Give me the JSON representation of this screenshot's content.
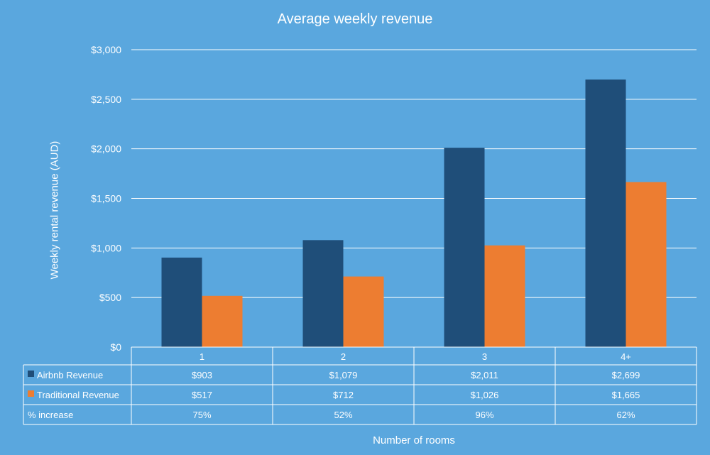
{
  "chart_data": {
    "type": "bar",
    "title": "Average weekly revenue",
    "xlabel": "Number of rooms",
    "ylabel": "Weekly rental revenue (AUD)",
    "categories": [
      "1",
      "2",
      "3",
      "4+"
    ],
    "series": [
      {
        "name": "Airbnb Revenue",
        "color": "#1f4e79",
        "values": [
          903,
          1079,
          2011,
          2699
        ],
        "table_labels": [
          "$903",
          "$1,079",
          "$2,011",
          "$2,699"
        ]
      },
      {
        "name": "Traditional Revenue",
        "color": "#ed7d31",
        "values": [
          517,
          712,
          1026,
          1665
        ],
        "table_labels": [
          "$517",
          "$712",
          "$1,026",
          "$1,665"
        ]
      }
    ],
    "extra_rows": [
      {
        "name": "% increase",
        "values": [
          "75%",
          "52%",
          "96%",
          "62%"
        ]
      }
    ],
    "ylim": [
      0,
      3000
    ],
    "yticks": [
      0,
      500,
      1000,
      1500,
      2000,
      2500,
      3000
    ],
    "ytick_labels": [
      "$0",
      "$500",
      "$1,000",
      "$1,500",
      "$2,000",
      "$2,500",
      "$3,000"
    ],
    "grid": true,
    "legend": "data-table"
  },
  "colors": {
    "background": "#5aa7de",
    "gridline": "#ffffff",
    "text": "#ffffff"
  }
}
